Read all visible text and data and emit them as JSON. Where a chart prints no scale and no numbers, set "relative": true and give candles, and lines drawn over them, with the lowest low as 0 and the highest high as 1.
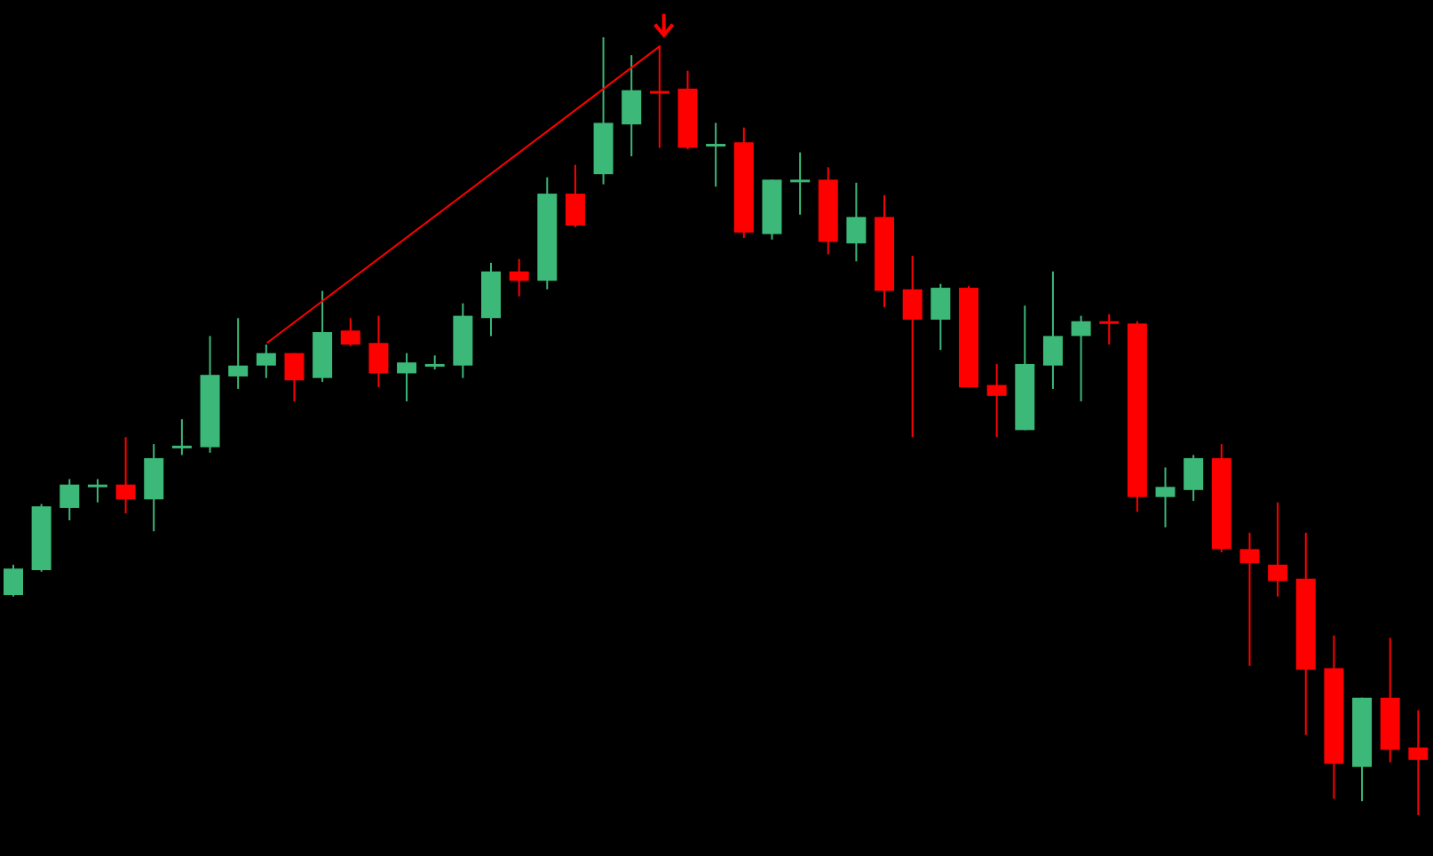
{
  "chart_data": {
    "type": "candlestick",
    "relative": true,
    "categories": [
      null,
      null,
      null,
      null,
      null,
      null,
      null,
      null,
      null,
      null,
      null,
      null,
      null,
      null,
      null,
      null,
      null,
      null,
      null,
      null,
      null,
      null,
      null,
      null,
      null,
      null,
      null,
      null,
      null,
      null,
      null,
      null,
      null,
      null,
      null,
      null,
      null,
      null,
      null,
      null,
      null,
      null,
      null,
      null,
      null,
      null,
      null,
      null,
      null,
      null,
      null
    ],
    "ohlc": [
      [
        0.283,
        0.322,
        0.281,
        0.317
      ],
      [
        0.315,
        0.4,
        0.313,
        0.397
      ],
      [
        0.395,
        0.432,
        0.379,
        0.425
      ],
      [
        0.423,
        0.432,
        0.402,
        0.425
      ],
      [
        0.425,
        0.486,
        0.388,
        0.406
      ],
      [
        0.406,
        0.477,
        0.365,
        0.459
      ],
      [
        0.473,
        0.509,
        0.463,
        0.475
      ],
      [
        0.473,
        0.616,
        0.466,
        0.566
      ],
      [
        0.564,
        0.639,
        0.548,
        0.578
      ],
      [
        0.578,
        0.605,
        0.562,
        0.594
      ],
      [
        0.594,
        0.594,
        0.532,
        0.559
      ],
      [
        0.562,
        0.674,
        0.557,
        0.621
      ],
      [
        0.623,
        0.639,
        0.603,
        0.605
      ],
      [
        0.607,
        0.642,
        0.55,
        0.568
      ],
      [
        0.568,
        0.594,
        0.532,
        0.582
      ],
      [
        0.578,
        0.591,
        0.573,
        0.58
      ],
      [
        0.578,
        0.658,
        0.562,
        0.642
      ],
      [
        0.639,
        0.71,
        0.616,
        0.699
      ],
      [
        0.699,
        0.715,
        0.667,
        0.687
      ],
      [
        0.687,
        0.82,
        0.676,
        0.799
      ],
      [
        0.799,
        0.836,
        0.756,
        0.758
      ],
      [
        0.824,
        1,
        0.811,
        0.89
      ],
      [
        0.888,
        0.977,
        0.847,
        0.932
      ],
      [
        0.931,
        0.989,
        0.858,
        0.929
      ],
      [
        0.934,
        0.957,
        0.856,
        0.858
      ],
      [
        0.861,
        0.89,
        0.808,
        0.863
      ],
      [
        0.865,
        0.884,
        0.742,
        0.749
      ],
      [
        0.747,
        0.817,
        0.74,
        0.817
      ],
      [
        0.816,
        0.852,
        0.772,
        0.817
      ],
      [
        0.817,
        0.833,
        0.721,
        0.737
      ],
      [
        0.735,
        0.813,
        0.712,
        0.769
      ],
      [
        0.769,
        0.797,
        0.653,
        0.674
      ],
      [
        0.676,
        0.719,
        0.486,
        0.637
      ],
      [
        0.637,
        0.683,
        0.598,
        0.678
      ],
      [
        0.678,
        0.68,
        0.55,
        0.55
      ],
      [
        0.553,
        0.58,
        0.486,
        0.539
      ],
      [
        0.495,
        0.655,
        0.495,
        0.58
      ],
      [
        0.578,
        0.699,
        0.548,
        0.616
      ],
      [
        0.616,
        0.642,
        0.532,
        0.635
      ],
      [
        0.635,
        0.644,
        0.605,
        0.633
      ],
      [
        0.632,
        0.635,
        0.39,
        0.409
      ],
      [
        0.409,
        0.447,
        0.37,
        0.422
      ],
      [
        0.418,
        0.463,
        0.404,
        0.459
      ],
      [
        0.459,
        0.477,
        0.338,
        0.342
      ],
      [
        0.342,
        0.363,
        0.192,
        0.324
      ],
      [
        0.322,
        0.402,
        0.281,
        0.301
      ],
      [
        0.304,
        0.363,
        0.103,
        0.187
      ],
      [
        0.189,
        0.231,
        0.021,
        0.066
      ],
      [
        0.062,
        0.151,
        0.018,
        0.151
      ],
      [
        0.151,
        0.228,
        0.068,
        0.084
      ],
      [
        0.087,
        0.135,
        0,
        0.071
      ]
    ],
    "colors": [
      "#3cb878",
      "#3cb878",
      "#3cb878",
      "#3cb878",
      "#ff0000",
      "#3cb878",
      "#3cb878",
      "#3cb878",
      "#3cb878",
      "#3cb878",
      "#ff0000",
      "#3cb878",
      "#ff0000",
      "#ff0000",
      "#3cb878",
      "#3cb878",
      "#3cb878",
      "#3cb878",
      "#ff0000",
      "#3cb878",
      "#ff0000",
      "#3cb878",
      "#3cb878",
      "#ff0000",
      "#ff0000",
      "#3cb878",
      "#ff0000",
      "#3cb878",
      "#3cb878",
      "#ff0000",
      "#3cb878",
      "#ff0000",
      "#ff0000",
      "#3cb878",
      "#ff0000",
      "#ff0000",
      "#3cb878",
      "#3cb878",
      "#3cb878",
      "#ff0000",
      "#ff0000",
      "#3cb878",
      "#3cb878",
      "#ff0000",
      "#ff0000",
      "#ff0000",
      "#ff0000",
      "#ff0000",
      "#3cb878",
      "#ff0000",
      "#ff0000"
    ],
    "series": [
      {
        "type": "line",
        "color": "#ff0000",
        "values": [
          null,
          null,
          null,
          null,
          null,
          null,
          null,
          null,
          null,
          0.607,
          null,
          null,
          null,
          null,
          null,
          null,
          null,
          null,
          null,
          null,
          null,
          null,
          null,
          0.989,
          null,
          null,
          null,
          null,
          null,
          null,
          null,
          null,
          null,
          null,
          null,
          null,
          null,
          null,
          null,
          null,
          null,
          null,
          null,
          null,
          null,
          null,
          null,
          null,
          null,
          null,
          null
        ]
      }
    ]
  }
}
